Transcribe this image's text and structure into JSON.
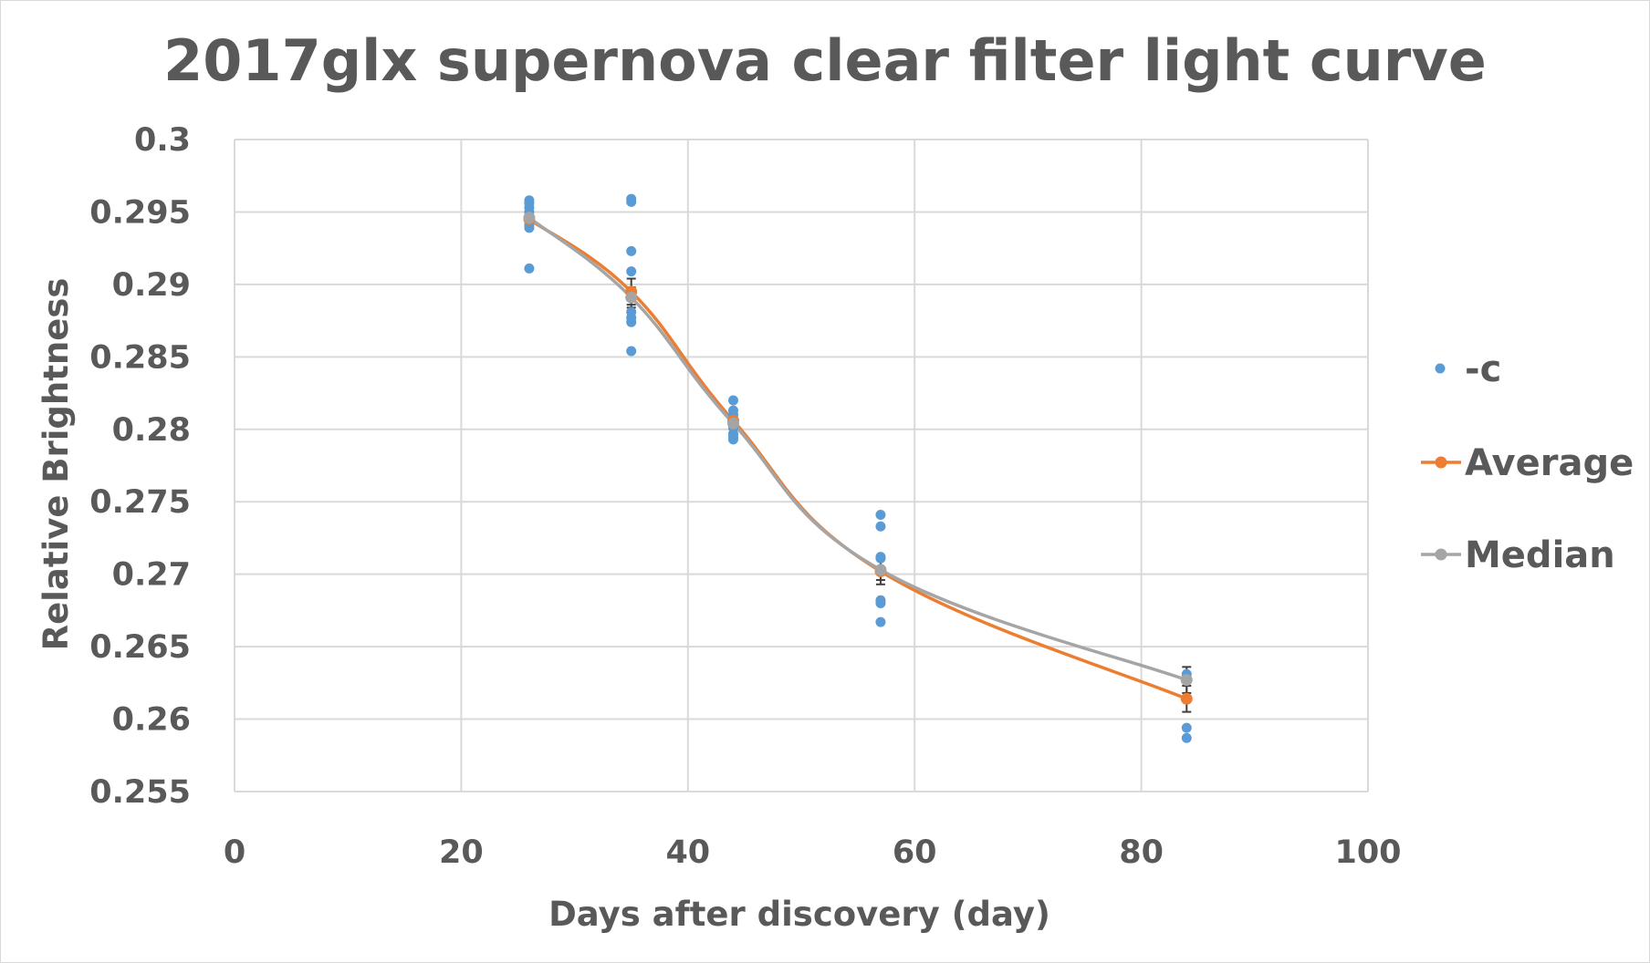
{
  "chart_data": {
    "type": "scatter",
    "title": "2017glx supernova clear filter light curve",
    "xlabel": "Days after discovery (day)",
    "ylabel": "Relative Brightness",
    "xlim": [
      0,
      100
    ],
    "ylim": [
      0.255,
      0.3
    ],
    "x_ticks": [
      0,
      20,
      40,
      60,
      80,
      100
    ],
    "x_tick_labels": [
      "0",
      "20",
      "40",
      "60",
      "80",
      "100"
    ],
    "y_ticks": [
      0.255,
      0.26,
      0.265,
      0.27,
      0.275,
      0.28,
      0.285,
      0.29,
      0.295,
      0.3
    ],
    "y_tick_labels": [
      "0.255",
      "0.26",
      "0.265",
      "0.27",
      "0.275",
      "0.28",
      "0.285",
      "0.29",
      "0.295",
      "0.3"
    ],
    "grid": true,
    "legend_position": "right",
    "series": [
      {
        "name": "-c",
        "kind": "markers",
        "color": "#5b9bd5",
        "points": [
          [
            26,
            0.2958
          ],
          [
            26,
            0.2956
          ],
          [
            26,
            0.2953
          ],
          [
            26,
            0.295
          ],
          [
            26,
            0.2947
          ],
          [
            26,
            0.2944
          ],
          [
            26,
            0.2941
          ],
          [
            26,
            0.2939
          ],
          [
            26,
            0.2911
          ],
          [
            35,
            0.2959
          ],
          [
            35,
            0.2957
          ],
          [
            35,
            0.2923
          ],
          [
            35,
            0.2909
          ],
          [
            35,
            0.2894
          ],
          [
            35,
            0.2881
          ],
          [
            35,
            0.2877
          ],
          [
            35,
            0.2874
          ],
          [
            35,
            0.2854
          ],
          [
            44,
            0.282
          ],
          [
            44,
            0.2813
          ],
          [
            44,
            0.281
          ],
          [
            44,
            0.2806
          ],
          [
            44,
            0.2801
          ],
          [
            44,
            0.2797
          ],
          [
            44,
            0.2795
          ],
          [
            44,
            0.2793
          ],
          [
            57,
            0.2741
          ],
          [
            57,
            0.2733
          ],
          [
            57,
            0.2712
          ],
          [
            57,
            0.2711
          ],
          [
            57,
            0.2703
          ],
          [
            57,
            0.2682
          ],
          [
            57,
            0.268
          ],
          [
            57,
            0.2667
          ],
          [
            84,
            0.2631
          ],
          [
            84,
            0.2628
          ],
          [
            84,
            0.2594
          ],
          [
            84,
            0.2587
          ]
        ]
      },
      {
        "name": "Average",
        "kind": "smooth-line",
        "color": "#ed7d31",
        "x": [
          26,
          35,
          44,
          57,
          84
        ],
        "y": [
          0.2945,
          0.2895,
          0.2806,
          0.2702,
          0.2614
        ],
        "error": [
          0.0004,
          0.0009,
          0.0003,
          0.0009,
          0.0009
        ]
      },
      {
        "name": "Median",
        "kind": "smooth-line",
        "color": "#a5a5a5",
        "x": [
          26,
          35,
          44,
          57,
          84
        ],
        "y": [
          0.2946,
          0.2891,
          0.2804,
          0.2703,
          0.2627
        ],
        "error": [
          0.0003,
          0.0007,
          0.0003,
          0.0007,
          0.0009
        ]
      }
    ]
  }
}
